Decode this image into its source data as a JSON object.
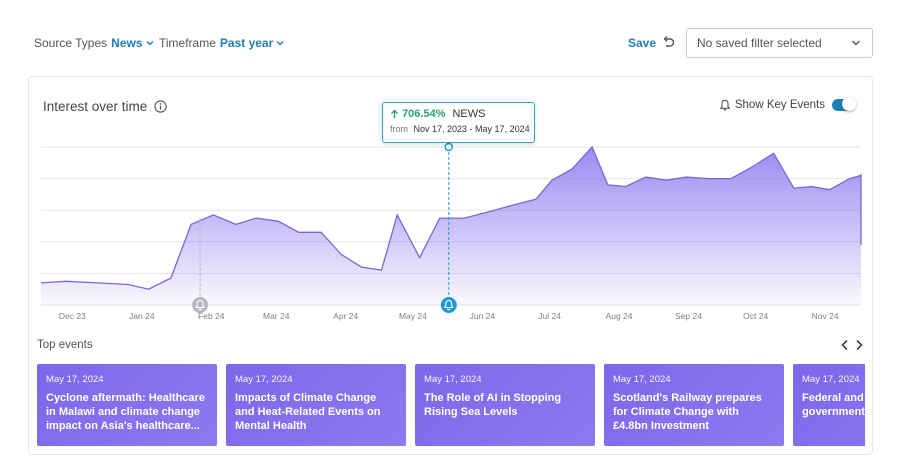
{
  "filters": {
    "source_types": {
      "label": "Source Types",
      "value": "News"
    },
    "timeframe": {
      "label": "Timeframe",
      "value": "Past year"
    }
  },
  "save_label": "Save",
  "saved_filter_select": {
    "value": "No saved filter selected"
  },
  "panel": {
    "title": "Interest over time",
    "key_events_label": "Show Key Events",
    "key_events_on": true,
    "top_events_label": "Top events"
  },
  "tooltip": {
    "change": "706.54%",
    "source": "NEWS",
    "from_label": "from",
    "range": "Nov 17, 2023 - May 17, 2024"
  },
  "chart_data": {
    "type": "area",
    "x_ticks": [
      "Dec 23",
      "Jan 24",
      "Feb 24",
      "Mar 24",
      "Apr 24",
      "May 24",
      "Jun 24",
      "Jul 24",
      "Aug 24",
      "Sep 24",
      "Oct 24",
      "Nov 24"
    ],
    "x_range": [
      "Nov 17, 2023",
      "Nov 17, 2024"
    ],
    "y_range": [
      0,
      100
    ],
    "grid": true,
    "y_tick_labels": false,
    "highlighted_point": "May 17, 2024",
    "key_event_markers": [
      "Jan 27, 2024",
      "May 17, 2024"
    ],
    "points": [
      {
        "x": "2023-11-17",
        "y": 14
      },
      {
        "x": "2023-11-28",
        "y": 15
      },
      {
        "x": "2023-12-12",
        "y": 14
      },
      {
        "x": "2023-12-26",
        "y": 13
      },
      {
        "x": "2024-01-04",
        "y": 10
      },
      {
        "x": "2024-01-14",
        "y": 17
      },
      {
        "x": "2024-01-23",
        "y": 51
      },
      {
        "x": "2024-02-02",
        "y": 57
      },
      {
        "x": "2024-02-12",
        "y": 51
      },
      {
        "x": "2024-02-21",
        "y": 55
      },
      {
        "x": "2024-03-02",
        "y": 53
      },
      {
        "x": "2024-03-11",
        "y": 46
      },
      {
        "x": "2024-03-21",
        "y": 46
      },
      {
        "x": "2024-03-30",
        "y": 32
      },
      {
        "x": "2024-04-08",
        "y": 24
      },
      {
        "x": "2024-04-17",
        "y": 22
      },
      {
        "x": "2024-04-24",
        "y": 57
      },
      {
        "x": "2024-05-04",
        "y": 30
      },
      {
        "x": "2024-05-13",
        "y": 55
      },
      {
        "x": "2024-05-24",
        "y": 55
      },
      {
        "x": "2024-06-04",
        "y": 59
      },
      {
        "x": "2024-06-14",
        "y": 63
      },
      {
        "x": "2024-06-25",
        "y": 67
      },
      {
        "x": "2024-07-02",
        "y": 79
      },
      {
        "x": "2024-07-11",
        "y": 86
      },
      {
        "x": "2024-07-20",
        "y": 100
      },
      {
        "x": "2024-07-27",
        "y": 76
      },
      {
        "x": "2024-08-04",
        "y": 75
      },
      {
        "x": "2024-08-13",
        "y": 81
      },
      {
        "x": "2024-08-22",
        "y": 79
      },
      {
        "x": "2024-08-31",
        "y": 81
      },
      {
        "x": "2024-09-10",
        "y": 80
      },
      {
        "x": "2024-09-20",
        "y": 80
      },
      {
        "x": "2024-09-29",
        "y": 87
      },
      {
        "x": "2024-10-09",
        "y": 96
      },
      {
        "x": "2024-10-18",
        "y": 74
      },
      {
        "x": "2024-10-26",
        "y": 75
      },
      {
        "x": "2024-11-03",
        "y": 73
      },
      {
        "x": "2024-11-12",
        "y": 80
      },
      {
        "x": "2024-11-21",
        "y": 82
      },
      {
        "x": "2024-11-30",
        "y": 76
      },
      {
        "x": "2024-12-08",
        "y": 82
      },
      {
        "x": "2024-12-16",
        "y": 80
      },
      {
        "x": "2024-12-26",
        "y": 83
      },
      {
        "x": "2025-01-04",
        "y": 79
      },
      {
        "x": "2025-01-13",
        "y": 82
      },
      {
        "x": "2025-01-22",
        "y": 38
      }
    ]
  },
  "events": [
    {
      "date": "May 17, 2024",
      "title": "Cyclone aftermath: Healthcare in Malawi and climate change impact on Asia's healthcare..."
    },
    {
      "date": "May 17, 2024",
      "title": "Impacts of Climate Change and Heat-Related Events on Mental Health"
    },
    {
      "date": "May 17, 2024",
      "title": "The Role of AI in Stopping Rising Sea Levels"
    },
    {
      "date": "May 17, 2024",
      "title": "Scotland's Railway prepares for Climate Change with £4.8bn Investment"
    },
    {
      "date": "May 17, 2024",
      "title": "Federal and state governments ... defences in l..."
    }
  ],
  "colors": {
    "accent": "#1d7fb8",
    "area_fill": "#8b74ef",
    "line": "#7a68d4",
    "card": "#7c67ea",
    "positive": "#27a56b",
    "marker_active": "#1d9ad1",
    "marker_inactive": "#b7b9be"
  },
  "icons": {
    "info": "info-icon",
    "bell": "bell-icon",
    "undo": "undo-icon",
    "chevron": "chevron-down-icon",
    "arrow_up": "arrow-up-icon",
    "prev": "chevron-left-icon",
    "next": "chevron-right-icon"
  }
}
